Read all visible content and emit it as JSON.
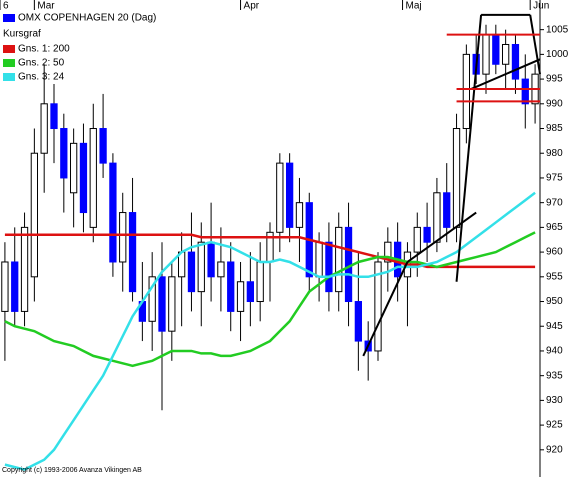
{
  "chart_data": {
    "type": "candlestick",
    "title": "OMX COPENHAGEN 20 (Dag)",
    "legend_title": "Kursgraf",
    "copyright": "Copyright (c) 1993-2006 Avanza Vikingen AB",
    "up_color": "#ffffff",
    "down_color": "#0000ff",
    "candles": {
      "open": [
        948,
        958,
        948,
        955,
        980,
        990,
        985,
        972,
        982,
        965,
        985,
        978,
        958,
        968,
        950,
        946,
        955,
        944,
        955,
        960,
        952,
        962,
        955,
        958,
        948,
        954,
        950,
        958,
        964,
        978,
        965,
        970,
        955,
        962,
        952,
        965,
        950,
        942,
        940,
        958,
        962,
        955,
        960,
        965,
        962,
        972,
        965,
        985,
        1000,
        996,
        1004,
        998,
        1002,
        995,
        990
      ],
      "high": [
        962,
        965,
        968,
        985,
        998,
        994,
        988,
        985,
        986,
        990,
        992,
        980,
        972,
        975,
        958,
        960,
        962,
        958,
        964,
        968,
        966,
        970,
        965,
        962,
        958,
        960,
        962,
        966,
        980,
        980,
        975,
        972,
        964,
        966,
        968,
        970,
        960,
        946,
        960,
        965,
        966,
        962,
        968,
        970,
        975,
        978,
        988,
        1002,
        1004,
        1006,
        1006,
        1005,
        1004,
        1000,
        998
      ],
      "low": [
        938,
        945,
        945,
        950,
        972,
        978,
        968,
        965,
        964,
        962,
        975,
        955,
        952,
        950,
        942,
        940,
        928,
        938,
        945,
        948,
        945,
        950,
        948,
        944,
        942,
        945,
        946,
        950,
        960,
        962,
        958,
        952,
        950,
        948,
        948,
        945,
        936,
        934,
        938,
        952,
        950,
        945,
        955,
        958,
        960,
        962,
        962,
        982,
        994,
        992,
        996,
        993,
        992,
        985,
        986
      ],
      "close": [
        958,
        948,
        965,
        980,
        990,
        985,
        975,
        982,
        968,
        985,
        978,
        958,
        968,
        952,
        946,
        955,
        944,
        955,
        960,
        952,
        962,
        955,
        958,
        948,
        954,
        950,
        958,
        964,
        978,
        965,
        970,
        955,
        962,
        952,
        965,
        950,
        942,
        940,
        958,
        962,
        955,
        960,
        965,
        962,
        972,
        965,
        985,
        1000,
        996,
        1004,
        998,
        1002,
        995,
        990,
        996
      ]
    },
    "series": [
      {
        "name": "Gns. 1: 200",
        "color": "#dd1111",
        "values": [
          963.5,
          963.5,
          963.5,
          963.5,
          963.5,
          963.5,
          963.5,
          963.5,
          963.5,
          963.5,
          963.5,
          963.5,
          963.5,
          963.5,
          963.5,
          963.5,
          963.5,
          963.5,
          963.5,
          963.5,
          963,
          963,
          963,
          963,
          963,
          963,
          963,
          963,
          963,
          963,
          963,
          962.5,
          962,
          961.5,
          961,
          960.5,
          960,
          959.5,
          959,
          958.5,
          958,
          957.5,
          957.5,
          957,
          957,
          957,
          957,
          957,
          957,
          957,
          957,
          957,
          957,
          957,
          957
        ]
      },
      {
        "name": "Gns. 2: 50",
        "color": "#22cc22",
        "values": [
          946,
          945,
          944.5,
          944,
          943,
          942,
          941.5,
          941,
          940,
          939,
          938.5,
          938,
          937.5,
          937,
          937.5,
          938,
          939,
          940,
          940,
          940,
          939.5,
          939.5,
          939,
          939,
          939.5,
          940,
          941,
          942,
          944,
          946,
          949,
          952,
          953.5,
          955,
          956,
          957,
          958,
          958.5,
          959,
          959,
          958.5,
          958,
          958,
          957.5,
          957,
          957.5,
          958,
          958.5,
          959,
          959.5,
          960,
          961,
          962,
          963,
          964
        ]
      },
      {
        "name": "Gns. 3: 24",
        "color": "#33e0e8",
        "values": [
          917,
          916.5,
          916,
          917,
          918,
          920,
          923,
          926,
          929,
          932,
          935,
          939,
          943,
          947,
          950,
          953,
          956,
          958,
          960,
          961,
          961.5,
          962,
          961.5,
          961,
          960,
          959,
          958,
          958,
          958.5,
          958,
          957,
          956,
          955,
          955,
          955.5,
          955.5,
          955,
          955,
          955.5,
          956,
          957,
          957,
          957,
          957.5,
          958,
          959,
          960,
          961.5,
          963,
          964.5,
          966,
          967.5,
          969,
          970.5,
          972
        ]
      }
    ],
    "drawings": [
      {
        "color": "#000000",
        "points": [
          36.5,
          939,
          41,
          958
        ]
      },
      {
        "color": "#000000",
        "points": [
          41,
          958,
          48,
          968
        ]
      },
      {
        "color": "#000000",
        "points": [
          46,
          954,
          48.5,
          1008
        ]
      },
      {
        "color": "#000000",
        "points": [
          48.5,
          1008,
          53.5,
          1008
        ]
      },
      {
        "color": "#000000",
        "points": [
          53.5,
          1008,
          54.5,
          996
        ]
      },
      {
        "color": "#000000",
        "points": [
          47.5,
          993,
          54.5,
          999
        ]
      },
      {
        "color": "#dd1111",
        "points": [
          45,
          1004,
          54.5,
          1004
        ]
      },
      {
        "color": "#dd1111",
        "points": [
          46,
          993,
          54.5,
          993
        ]
      },
      {
        "color": "#dd1111",
        "points": [
          46,
          990.5,
          54.5,
          990.5
        ]
      }
    ],
    "xlim": [
      -0.5,
      54.5
    ],
    "xticks": [
      {
        "value": -0.5,
        "label": "6"
      },
      {
        "value": 3,
        "label": "Mar"
      },
      {
        "value": 24,
        "label": "Apr"
      },
      {
        "value": 40.5,
        "label": "Maj"
      },
      {
        "value": 53.5,
        "label": "Jun"
      }
    ],
    "ylim": [
      914.5,
      1011
    ],
    "yticks": [
      920,
      925,
      930,
      935,
      940,
      945,
      950,
      955,
      960,
      965,
      970,
      975,
      980,
      985,
      990,
      995,
      1000,
      1005
    ]
  }
}
